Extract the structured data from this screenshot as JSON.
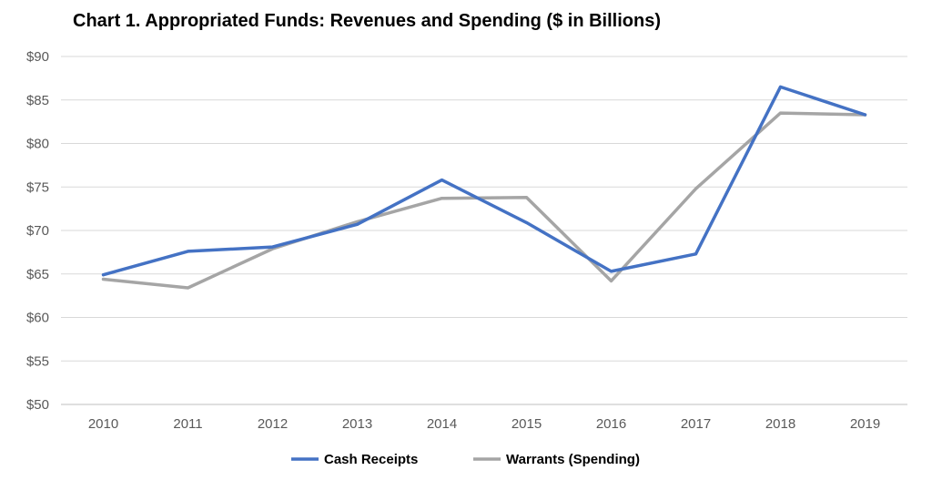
{
  "chart_data": {
    "type": "line",
    "title": "Chart 1.  Appropriated Funds: Revenues and Spending  ($ in Billions)",
    "xlabel": "",
    "ylabel": "",
    "categories": [
      "2010",
      "2011",
      "2012",
      "2013",
      "2014",
      "2015",
      "2016",
      "2017",
      "2018",
      "2019"
    ],
    "ylim": [
      50,
      90
    ],
    "ytick_values": [
      50,
      55,
      60,
      65,
      70,
      75,
      80,
      85,
      90
    ],
    "ytick_labels": [
      "$50",
      "$55",
      "$60",
      "$65",
      "$70",
      "$75",
      "$80",
      "$85",
      "$90"
    ],
    "grid": true,
    "legend_position": "bottom",
    "series": [
      {
        "name": "Cash Receipts",
        "color": "#4472C4",
        "values": [
          64.9,
          67.6,
          68.1,
          70.7,
          75.8,
          70.9,
          65.3,
          67.3,
          86.5,
          83.3
        ]
      },
      {
        "name": "Warrants (Spending)",
        "color": "#A5A5A5",
        "values": [
          64.4,
          63.4,
          67.9,
          71.0,
          73.7,
          73.8,
          64.2,
          74.8,
          83.5,
          83.3
        ]
      }
    ]
  }
}
